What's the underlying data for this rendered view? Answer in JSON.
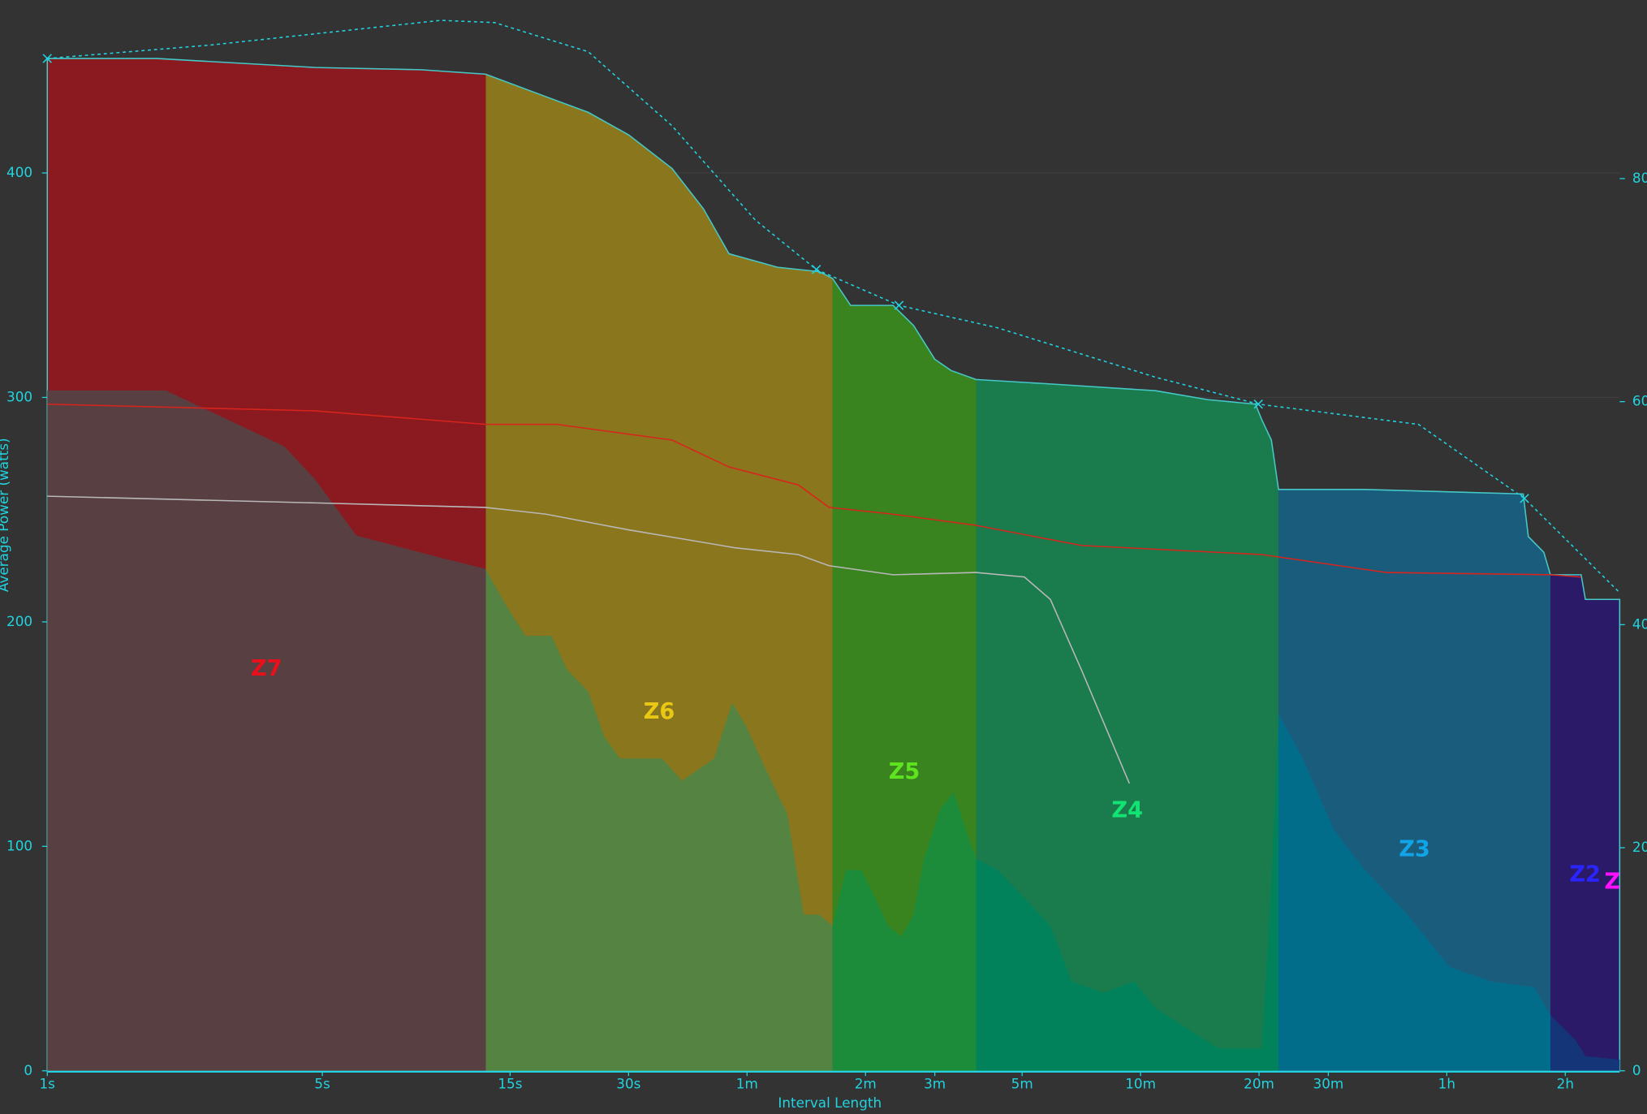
{
  "chart_data": {
    "type": "area",
    "x_label": "Interval Length",
    "y_label": "Average Power (watts)",
    "log_x": true,
    "grid": true,
    "xlim": [
      1,
      9900
    ],
    "ylim": [
      0,
      477
    ],
    "y2lim": [
      0,
      96
    ],
    "xticks": [
      {
        "value": 1,
        "label": "1s"
      },
      {
        "value": 5,
        "label": "5s"
      },
      {
        "value": 15,
        "label": "15s"
      },
      {
        "value": 30,
        "label": "30s"
      },
      {
        "value": 60,
        "label": "1m"
      },
      {
        "value": 120,
        "label": "2m"
      },
      {
        "value": 180,
        "label": "3m"
      },
      {
        "value": 300,
        "label": "5m"
      },
      {
        "value": 600,
        "label": "10m"
      },
      {
        "value": 1200,
        "label": "20m"
      },
      {
        "value": 1800,
        "label": "30m"
      },
      {
        "value": 3600,
        "label": "1h"
      },
      {
        "value": 7200,
        "label": "2h"
      }
    ],
    "yticks": [
      0,
      100,
      200,
      300,
      400
    ],
    "y2ticks": [
      0,
      20,
      40,
      60,
      80
    ],
    "zones": [
      {
        "name": "Z7",
        "color": "#e8101a",
        "from": 1,
        "to": 13,
        "fills": [
          "#8a1a20",
          "#544244"
        ]
      },
      {
        "name": "Z6",
        "color": "#e8c814",
        "from": 13,
        "to": 99,
        "fills": [
          "#8a761c",
          "#4f8445"
        ]
      },
      {
        "name": "Z5",
        "color": "#5ee41e",
        "from": 99,
        "to": 229,
        "fills": [
          "#3a8420",
          "#1a8c3c"
        ]
      },
      {
        "name": "Z4",
        "color": "#12e474",
        "from": 229,
        "to": 1345,
        "fills": [
          "#1a7c4c",
          "#00825c"
        ]
      },
      {
        "name": "Z3",
        "color": "#12a4e8",
        "from": 1345,
        "to": 6600,
        "fills": [
          "#1a5c7c",
          "#006e8c"
        ]
      },
      {
        "name": "Z2",
        "color": "#2a24ff",
        "from": 6600,
        "to": 9900,
        "fills": [
          "#2a1a68",
          "#12387a"
        ]
      },
      {
        "name": "Z",
        "color": "#ff10ff"
      }
    ],
    "series": [
      {
        "kind": "area",
        "color": "#45c8c8",
        "x": [
          1,
          1.9,
          4.8,
          8.9,
          13,
          18.5,
          23.7,
          30,
          38.7,
          46.5,
          54,
          71.7,
          91.6,
          99,
          110,
          141,
          159,
          180,
          198,
          229,
          354,
          655,
          890,
          1175,
          1220,
          1290,
          1345,
          2230,
          5630,
          5800,
          6350,
          6600,
          7900,
          8100,
          9900
        ],
        "values": [
          451,
          451,
          447,
          446,
          444,
          434,
          427,
          417,
          402,
          384,
          364,
          358,
          356,
          353,
          341,
          341,
          332,
          317,
          312,
          308,
          306,
          303,
          299,
          297,
          290,
          281,
          259,
          259,
          257,
          238,
          231,
          221,
          221,
          210,
          210
        ]
      },
      {
        "kind": "area",
        "axis": "y2",
        "x": [
          1,
          2,
          4,
          4.8,
          6.1,
          7.8,
          10,
          13,
          14.5,
          16.4,
          19.1,
          20.9,
          23.7,
          26,
          28.5,
          36.5,
          41,
          49.5,
          55,
          59.5,
          67,
          76,
          83.6,
          91.6,
          99,
          107,
          117,
          125,
          137,
          148,
          159,
          169,
          186,
          201,
          216,
          229,
          260,
          304,
          354,
          401,
          481,
          579,
          655,
          838,
          947,
          1220,
          1290,
          1345,
          1550,
          1860,
          2230,
          2860,
          3660,
          4680,
          6000,
          6600,
          7660,
          8100,
          9900
        ],
        "values": [
          61,
          61,
          56,
          53,
          48,
          47,
          46,
          45,
          42,
          39,
          39,
          36,
          34,
          30,
          28,
          28,
          26,
          28,
          33,
          31,
          27,
          23,
          14,
          14,
          13,
          18,
          18,
          16,
          13,
          12,
          14,
          19,
          23.5,
          25,
          21.6,
          19,
          18,
          15.5,
          13,
          8,
          7,
          8,
          5.6,
          3.2,
          2,
          2,
          17,
          32,
          28,
          21.6,
          18,
          14,
          9.3,
          8,
          7.5,
          5,
          2.7,
          1.3,
          1
        ]
      },
      {
        "kind": "line",
        "color": "#d8241c",
        "x": [
          1,
          4.8,
          13,
          19.7,
          38.7,
          54,
          81,
          97,
          141,
          229,
          426,
          1220,
          2530,
          6600,
          7900
        ],
        "values": [
          297,
          294,
          288,
          288,
          281,
          269,
          261,
          251,
          248,
          243,
          234,
          230,
          222,
          221,
          220
        ]
      },
      {
        "kind": "line",
        "color": "#b8b8b8",
        "x": [
          1,
          4.8,
          13,
          18.5,
          30,
          56,
          81,
          97,
          141,
          229,
          304,
          354,
          426,
          562
        ],
        "values": [
          256,
          253,
          251,
          248,
          241,
          233,
          230,
          225,
          221,
          222,
          220,
          210,
          178,
          128
        ]
      },
      {
        "kind": "line",
        "dash": true,
        "color": "#22d3e0",
        "x": [
          1,
          2.6,
          10,
          13.7,
          23.7,
          38.7,
          63,
          90,
          146,
          260,
          655,
          1195,
          3050,
          5670,
          9900
        ],
        "values": [
          451,
          457,
          468,
          467,
          454,
          421,
          379,
          357,
          341,
          331,
          309,
          297,
          288,
          255,
          213
        ]
      },
      {
        "kind": "scatter",
        "color": "#22d3e0",
        "x": [
          1,
          90,
          146,
          1195,
          5670
        ],
        "values": [
          451,
          357,
          341,
          297,
          255
        ]
      }
    ]
  }
}
